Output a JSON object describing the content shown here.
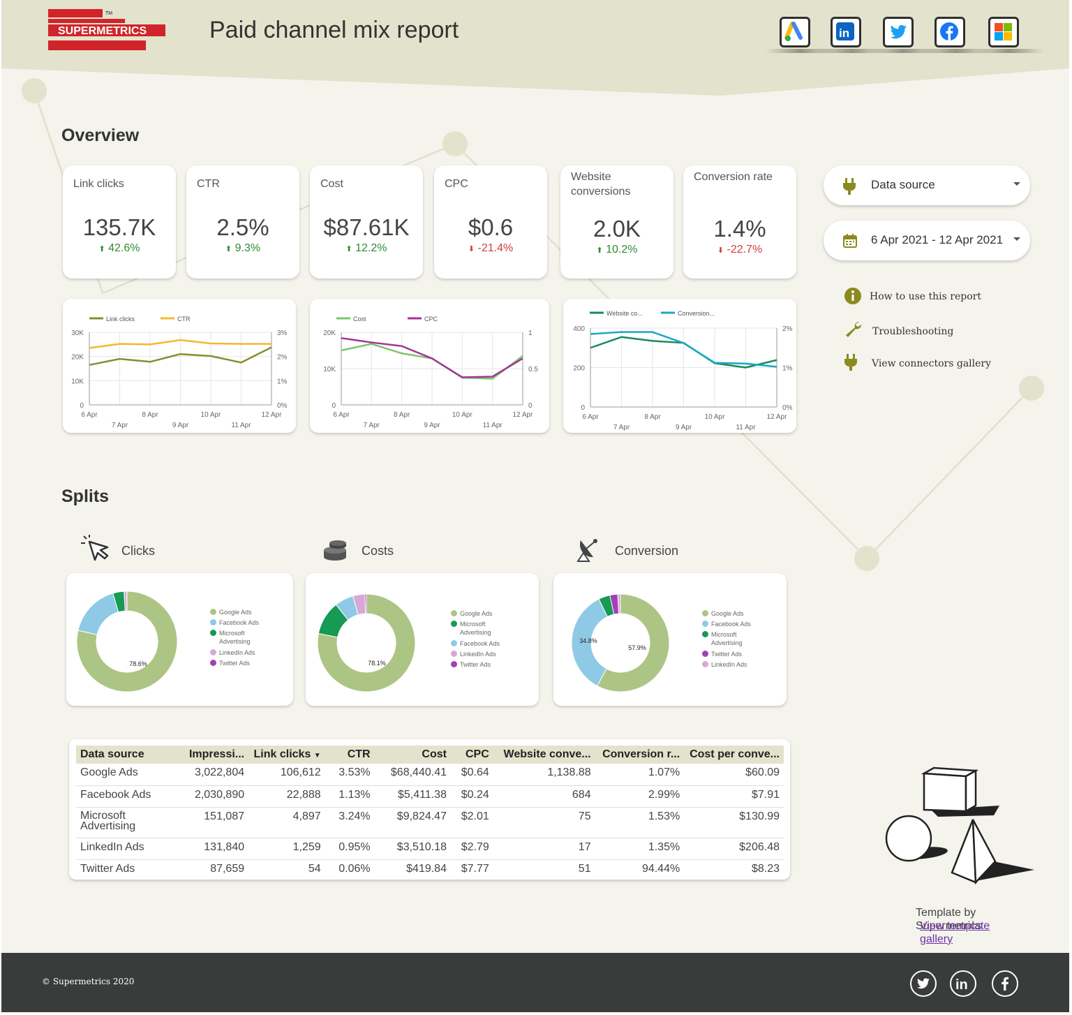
{
  "header": {
    "logo_text": "SUPERMETRICS",
    "logo_tm": "TM",
    "title": "Paid channel mix report",
    "connectors": [
      {
        "name": "google-ads",
        "icon": "google-ads-icon"
      },
      {
        "name": "linkedin",
        "icon": "linkedin-icon"
      },
      {
        "name": "twitter",
        "icon": "twitter-icon"
      },
      {
        "name": "facebook",
        "icon": "facebook-icon"
      },
      {
        "name": "microsoft",
        "icon": "microsoft-icon"
      }
    ]
  },
  "overview": {
    "title": "Overview",
    "kpis": [
      {
        "label": "Link clicks",
        "value": "135.7K",
        "delta": "42.6%",
        "direction": "up"
      },
      {
        "label": "CTR",
        "value": "2.5%",
        "delta": "9.3%",
        "direction": "up"
      },
      {
        "label": "Cost",
        "value": "$87.61K",
        "delta": "12.2%",
        "direction": "up"
      },
      {
        "label": "CPC",
        "value": "$0.6",
        "delta": "-21.4%",
        "direction": "down"
      },
      {
        "label": "Website conversions",
        "value": "2.0K",
        "delta": "10.2%",
        "direction": "up"
      },
      {
        "label": "Conversion rate",
        "value": "1.4%",
        "delta": "-22.7%",
        "direction": "down"
      }
    ]
  },
  "controls": {
    "data_source": "Data source",
    "date_range": "6 Apr 2021 - 12 Apr 2021",
    "links": [
      {
        "label": "How to use this report",
        "icon": "info-icon"
      },
      {
        "label": "Troubleshooting",
        "icon": "wrench-icon"
      },
      {
        "label": "View connectors gallery",
        "icon": "plug-icon"
      }
    ]
  },
  "chart_data": [
    {
      "type": "line",
      "x": [
        "6 Apr",
        "7 Apr",
        "8 Apr",
        "9 Apr",
        "10 Apr",
        "11 Apr",
        "12 Apr"
      ],
      "series": [
        {
          "name": "Link clicks",
          "axis": "left",
          "color": "#8a8c2f",
          "values": [
            16500,
            19000,
            17800,
            21000,
            20200,
            17500,
            23800
          ]
        },
        {
          "name": "CTR",
          "axis": "right",
          "color": "#f5b82e",
          "values": [
            0.0235,
            0.0252,
            0.025,
            0.0268,
            0.0254,
            0.0252,
            0.0252
          ]
        }
      ],
      "ylim_left": [
        0,
        30000
      ],
      "yticks_left": [
        "0",
        "10K",
        "20K",
        "30K"
      ],
      "ylim_right": [
        0,
        0.03
      ],
      "yticks_right": [
        "0%",
        "1%",
        "2%",
        "3%"
      ],
      "xticks_top": [
        "6 Apr",
        "8 Apr",
        "10 Apr",
        "12 Apr"
      ],
      "xticks_bottom": [
        "7 Apr",
        "9 Apr",
        "11 Apr"
      ],
      "legend": "top"
    },
    {
      "type": "line",
      "x": [
        "6 Apr",
        "7 Apr",
        "8 Apr",
        "9 Apr",
        "10 Apr",
        "11 Apr",
        "12 Apr"
      ],
      "series": [
        {
          "name": "Cost",
          "axis": "left",
          "color": "#7dc56b",
          "values": [
            15000,
            16800,
            14200,
            12800,
            7500,
            7200,
            13500
          ]
        },
        {
          "name": "CPC",
          "axis": "right",
          "color": "#a43593",
          "values": [
            0.92,
            0.86,
            0.81,
            0.64,
            0.38,
            0.39,
            0.64
          ]
        }
      ],
      "ylim_left": [
        0,
        20000
      ],
      "yticks_left": [
        "0",
        "10K",
        "20K"
      ],
      "ylim_right": [
        0,
        1
      ],
      "yticks_right": [
        "0",
        "0.5",
        "1"
      ],
      "xticks_top": [
        "6 Apr",
        "8 Apr",
        "10 Apr",
        "12 Apr"
      ],
      "xticks_bottom": [
        "7 Apr",
        "9 Apr",
        "11 Apr"
      ],
      "legend": "top"
    },
    {
      "type": "line",
      "x": [
        "6 Apr",
        "7 Apr",
        "8 Apr",
        "9 Apr",
        "10 Apr",
        "11 Apr",
        "12 Apr"
      ],
      "series": [
        {
          "name": "Website co...",
          "axis": "left",
          "color": "#1a8a5a",
          "values": [
            300,
            355,
            335,
            325,
            222,
            200,
            238
          ]
        },
        {
          "name": "Conversion...",
          "axis": "right",
          "color": "#1aa7c6",
          "values": [
            0.0185,
            0.019,
            0.019,
            0.0162,
            0.0112,
            0.011,
            0.0102
          ]
        }
      ],
      "ylim_left": [
        0,
        400
      ],
      "yticks_left": [
        "0",
        "200",
        "400"
      ],
      "ylim_right": [
        0,
        0.02
      ],
      "yticks_right": [
        "0%",
        "1%",
        "2%"
      ],
      "xticks_top": [
        "6 Apr",
        "8 Apr",
        "10 Apr",
        "12 Apr"
      ],
      "xticks_bottom": [
        "7 Apr",
        "9 Apr",
        "11 Apr"
      ],
      "legend": "top"
    },
    {
      "type": "pie",
      "title": "Clicks",
      "labels": [
        "Google Ads",
        "Facebook Ads",
        "Microsoft Advertising",
        "LinkedIn Ads",
        "Twitter Ads"
      ],
      "values": [
        78.6,
        16.9,
        3.6,
        0.9,
        0.04
      ],
      "colors": [
        "#adc584",
        "#8ecae6",
        "#169a54",
        "#d7a9d7",
        "#a43fb8"
      ],
      "shown_labels": [
        "78.6%"
      ],
      "legend": "right"
    },
    {
      "type": "pie",
      "title": "Costs",
      "labels": [
        "Google Ads",
        "Microsoft Advertising",
        "Facebook Ads",
        "LinkedIn Ads",
        "Twitter Ads"
      ],
      "values": [
        78.1,
        11.2,
        6.2,
        4.0,
        0.5
      ],
      "colors": [
        "#adc584",
        "#169a54",
        "#8ecae6",
        "#d7a9d7",
        "#a43fb8"
      ],
      "shown_labels": [
        "78.1%"
      ],
      "legend": "right"
    },
    {
      "type": "pie",
      "title": "Conversion",
      "labels": [
        "Google Ads",
        "Facebook Ads",
        "Microsoft Advertising",
        "Twitter Ads",
        "LinkedIn Ads"
      ],
      "values": [
        57.9,
        34.8,
        3.8,
        2.6,
        0.9
      ],
      "colors": [
        "#adc584",
        "#8ecae6",
        "#169a54",
        "#a43fb8",
        "#d7a9d7"
      ],
      "shown_labels": [
        "57.9%",
        "34.8%"
      ],
      "legend": "right"
    }
  ],
  "splits": {
    "title": "Splits",
    "heads": [
      {
        "label": "Clicks",
        "icon": "cursor-click-icon"
      },
      {
        "label": "Costs",
        "icon": "coins-icon"
      },
      {
        "label": "Conversion",
        "icon": "satellite-dish-icon"
      }
    ],
    "legend_labels": [
      [
        "Google Ads",
        "Facebook Ads",
        "Microsoft Advertising",
        "LinkedIn Ads",
        "Twitter Ads"
      ],
      [
        "Google Ads",
        "Microsoft Advertising",
        "Facebook Ads",
        "LinkedIn Ads",
        "Twitter Ads"
      ],
      [
        "Google Ads",
        "Facebook Ads",
        "Microsoft Advertising",
        "Twitter Ads",
        "LinkedIn Ads"
      ]
    ]
  },
  "table": {
    "headers": [
      "Data source",
      "Impressi...",
      "Link clicks",
      "CTR",
      "Cost",
      "CPC",
      "Website conve...",
      "Conversion r...",
      "Cost per conve..."
    ],
    "sort_indicator": "▼",
    "rows": [
      [
        "Google Ads",
        "3,022,804",
        "106,612",
        "3.53%",
        "$68,440.41",
        "$0.64",
        "1,138.88",
        "1.07%",
        "$60.09"
      ],
      [
        "Facebook Ads",
        "2,030,890",
        "22,888",
        "1.13%",
        "$5,411.38",
        "$0.24",
        "684",
        "2.99%",
        "$7.91"
      ],
      [
        "Microsoft Advertising",
        "151,087",
        "4,897",
        "3.24%",
        "$9,824.47",
        "$2.01",
        "75",
        "1.53%",
        "$130.99"
      ],
      [
        "LinkedIn Ads",
        "131,840",
        "1,259",
        "0.95%",
        "$3,510.18",
        "$2.79",
        "17",
        "1.35%",
        "$206.48"
      ],
      [
        "Twitter Ads",
        "87,659",
        "54",
        "0.06%",
        "$419.84",
        "$7.77",
        "51",
        "94.44%",
        "$8.23"
      ]
    ]
  },
  "credits": {
    "template_by": "Template by",
    "brand": "Supermetrics",
    "link": "View template gallery"
  },
  "footer": {
    "copyright": "© Supermetrics 2020",
    "social": [
      "twitter-icon",
      "linkedin-icon",
      "facebook-icon"
    ]
  }
}
